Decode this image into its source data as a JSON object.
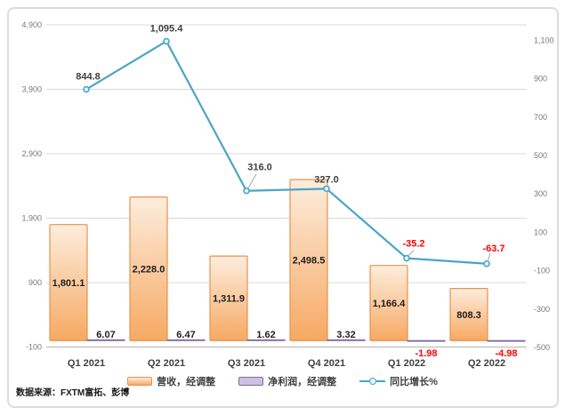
{
  "source_note": "数据来源：FXTM富拓、彭博",
  "legend": {
    "revenue": "营收，经调整",
    "net_profit": "净利润，经调整",
    "yoy_growth": "同比增长%"
  },
  "colors": {
    "bar_fill_top": "#FDEDDD",
    "bar_fill_bottom": "#F6A963",
    "bar_border": "#E8914D",
    "profit_fill": "#CCC2E0",
    "profit_border": "#7F6BA6",
    "line": "#49A5C7",
    "marker_fill": "#EAF4F9",
    "grid": "#D9D9D9",
    "axis_line": "#BFBFBF",
    "tick_label": "#777777",
    "category_label": "#3F3F3F",
    "value_label": "#1F1F1F",
    "line_label": "#3F3F3F",
    "negative_label": "#FF0000",
    "leader_line": "#A6A6A6"
  },
  "chart_data": {
    "type": "bar",
    "subtype": "bar-line combo, dual axis",
    "categories": [
      "Q1 2021",
      "Q2 2021",
      "Q3 2021",
      "Q4 2021",
      "Q1 2022",
      "Q2 2022"
    ],
    "series": [
      {
        "name": "营收，经调整",
        "type": "bar",
        "axis": "left",
        "values": [
          1801.1,
          2228.0,
          1311.9,
          2498.5,
          1166.4,
          808.3
        ],
        "labels": [
          "1,801.1",
          "2,228.0",
          "1,311.9",
          "2,498.5",
          "1,166.4",
          "808.3"
        ]
      },
      {
        "name": "净利润，经调整",
        "type": "bar",
        "axis": "left",
        "values": [
          6.07,
          6.47,
          1.62,
          3.32,
          -1.98,
          -4.98
        ],
        "labels": [
          "6.07",
          "6.47",
          "1.62",
          "3.32",
          "-1.98",
          "-4.98"
        ]
      },
      {
        "name": "同比增长%",
        "type": "line",
        "axis": "right",
        "values": [
          844.8,
          1095.4,
          316.0,
          327.0,
          -35.2,
          -63.7
        ],
        "labels": [
          "844.8",
          "1,095.4",
          "316.0",
          "327.0",
          "-35.2",
          "-63.7"
        ]
      }
    ],
    "left_axis": {
      "min": -100,
      "max": 4900,
      "ticks": [
        4900,
        3900,
        2900,
        1900,
        900,
        -100
      ],
      "tick_labels": [
        "4,900",
        "3,900",
        "2,900",
        "1,900",
        "900",
        "-100"
      ]
    },
    "right_axis": {
      "min": -500,
      "max": 1100,
      "ticks": [
        1100,
        900,
        700,
        500,
        300,
        100,
        -100,
        -300,
        -500
      ],
      "tick_labels": [
        "1,100",
        "900",
        "700",
        "500",
        "300",
        "100",
        "-100",
        "-300",
        "-500"
      ]
    },
    "grid": true,
    "legend_position": "bottom"
  }
}
